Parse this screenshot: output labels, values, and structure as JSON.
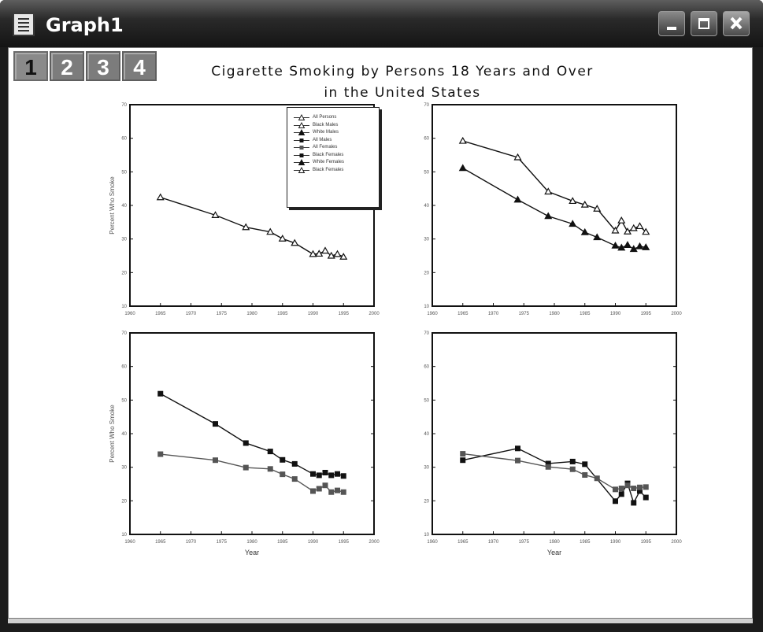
{
  "window": {
    "title": "Graph1",
    "app_icon": "graph-window-icon"
  },
  "window_controls": [
    {
      "name": "minimize-button",
      "icon": "minimize-icon"
    },
    {
      "name": "maximize-button",
      "icon": "maximize-icon"
    },
    {
      "name": "close-button",
      "icon": "close-icon"
    }
  ],
  "tabs": [
    {
      "label": "1",
      "active": true
    },
    {
      "label": "2",
      "active": false
    },
    {
      "label": "3",
      "active": false
    },
    {
      "label": "4",
      "active": false
    }
  ],
  "graph": {
    "title_line1": "Cigarette Smoking by Persons 18 Years and Over",
    "title_line2": "in the United States"
  },
  "legend": [
    "All Persons",
    "Black Males",
    "White Males",
    "All Males",
    "All Females",
    "Black Females",
    "White Females",
    "Black Females"
  ],
  "chart_data": [
    {
      "type": "line",
      "panel": "top-left",
      "ylabel": "Percent Who Smoke",
      "xlabel": "",
      "xlim": [
        1960,
        2000
      ],
      "ylim": [
        10,
        70
      ],
      "x_ticks": [
        1960,
        1965,
        1970,
        1975,
        1980,
        1985,
        1990,
        1995,
        2000
      ],
      "y_ticks": [
        10,
        20,
        30,
        40,
        50,
        60,
        70
      ],
      "series": [
        {
          "name": "All Persons",
          "marker": "triangle-open",
          "x": [
            1965,
            1974,
            1979,
            1983,
            1985,
            1987,
            1990,
            1991,
            1992,
            1993,
            1994,
            1995
          ],
          "y": [
            42.4,
            37.1,
            33.5,
            32.1,
            30.1,
            28.8,
            25.5,
            25.6,
            26.5,
            25.0,
            25.5,
            24.7
          ]
        }
      ]
    },
    {
      "type": "line",
      "panel": "top-right",
      "ylabel": "",
      "xlabel": "",
      "xlim": [
        1960,
        2000
      ],
      "ylim": [
        10,
        70
      ],
      "x_ticks": [
        1960,
        1965,
        1970,
        1975,
        1980,
        1985,
        1990,
        1995,
        2000
      ],
      "y_ticks": [
        10,
        20,
        30,
        40,
        50,
        60,
        70
      ],
      "series": [
        {
          "name": "Black Males",
          "marker": "triangle-open",
          "x": [
            1965,
            1974,
            1979,
            1983,
            1985,
            1987,
            1990,
            1991,
            1992,
            1993,
            1994,
            1995
          ],
          "y": [
            59.2,
            54.3,
            44.1,
            41.3,
            40.2,
            39.0,
            32.5,
            35.5,
            32.2,
            33.2,
            33.8,
            32.1
          ]
        },
        {
          "name": "White Males",
          "marker": "triangle-filled",
          "x": [
            1965,
            1974,
            1979,
            1983,
            1985,
            1987,
            1990,
            1991,
            1992,
            1993,
            1994,
            1995
          ],
          "y": [
            51.1,
            41.7,
            36.8,
            34.5,
            32.0,
            30.5,
            28.0,
            27.4,
            28.2,
            27.0,
            27.8,
            27.5
          ]
        }
      ]
    },
    {
      "type": "line",
      "panel": "bottom-left",
      "ylabel": "Percent Who Smoke",
      "xlabel": "Year",
      "xlim": [
        1960,
        2000
      ],
      "ylim": [
        10,
        70
      ],
      "x_ticks": [
        1960,
        1965,
        1970,
        1975,
        1980,
        1985,
        1990,
        1995,
        2000
      ],
      "y_ticks": [
        10,
        20,
        30,
        40,
        50,
        60,
        70
      ],
      "series": [
        {
          "name": "All Males",
          "marker": "square-filled",
          "x": [
            1965,
            1974,
            1979,
            1983,
            1985,
            1987,
            1990,
            1991,
            1992,
            1993,
            1994,
            1995
          ],
          "y": [
            51.9,
            42.9,
            37.2,
            34.7,
            32.2,
            31.0,
            28.0,
            27.6,
            28.4,
            27.6,
            28.0,
            27.4
          ]
        },
        {
          "name": "All Females",
          "marker": "square-gray",
          "x": [
            1965,
            1974,
            1979,
            1983,
            1985,
            1987,
            1990,
            1991,
            1992,
            1993,
            1994,
            1995
          ],
          "y": [
            33.9,
            32.1,
            29.9,
            29.5,
            27.9,
            26.5,
            22.9,
            23.6,
            24.6,
            22.6,
            23.1,
            22.6
          ]
        }
      ]
    },
    {
      "type": "line",
      "panel": "bottom-right",
      "ylabel": "",
      "xlabel": "Year",
      "xlim": [
        1960,
        2000
      ],
      "ylim": [
        10,
        70
      ],
      "x_ticks": [
        1960,
        1965,
        1970,
        1975,
        1980,
        1985,
        1990,
        1995,
        2000
      ],
      "y_ticks": [
        10,
        20,
        30,
        40,
        50,
        60,
        70
      ],
      "series": [
        {
          "name": "Black Females",
          "marker": "square-filled",
          "x": [
            1965,
            1974,
            1979,
            1983,
            1985,
            1990,
            1991,
            1992,
            1993,
            1994,
            1995
          ],
          "y": [
            32.1,
            35.6,
            31.1,
            31.7,
            30.9,
            19.9,
            22.0,
            25.2,
            19.4,
            22.9,
            21.0
          ]
        },
        {
          "name": "White Females",
          "marker": "square-gray",
          "x": [
            1965,
            1974,
            1979,
            1983,
            1985,
            1987,
            1990,
            1991,
            1992,
            1993,
            1994,
            1995
          ],
          "y": [
            34.0,
            32.0,
            30.1,
            29.4,
            27.7,
            26.7,
            23.4,
            23.7,
            24.6,
            23.7,
            24.0,
            24.1
          ]
        }
      ]
    }
  ]
}
